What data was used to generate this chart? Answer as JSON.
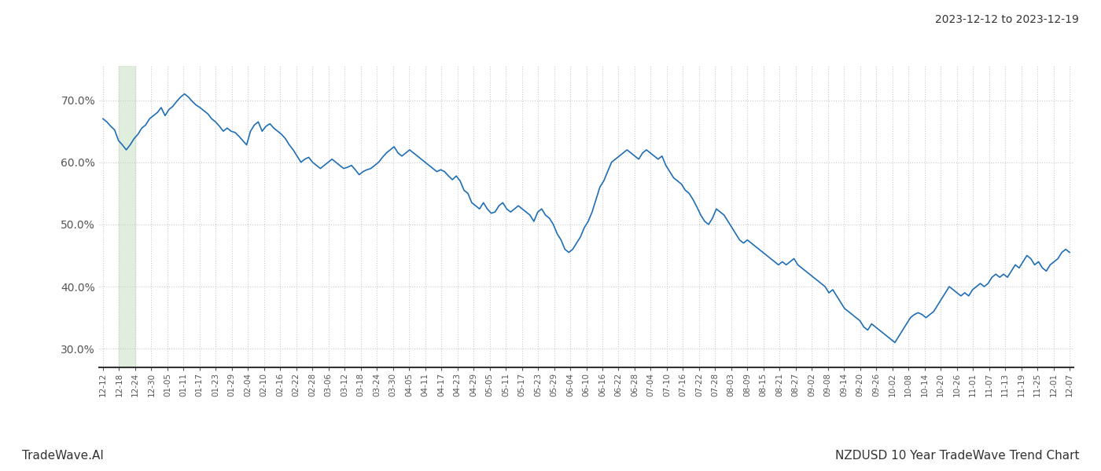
{
  "title_top_right": "2023-12-12 to 2023-12-19",
  "footer_left": "TradeWave.AI",
  "footer_right": "NZDUSD 10 Year TradeWave Trend Chart",
  "line_color": "#1f6eb5",
  "line_width": 1.2,
  "shaded_region_color": "#d4e8d0",
  "shaded_region_alpha": 0.7,
  "background_color": "#ffffff",
  "grid_color": "#cccccc",
  "ylim_min": 27.0,
  "ylim_max": 75.5,
  "yticks": [
    30.0,
    40.0,
    50.0,
    60.0,
    70.0
  ],
  "ytick_labels": [
    "30.0%",
    "40.0%",
    "50.0%",
    "60.0%",
    "70.0%"
  ],
  "x_labels": [
    "12-12",
    "12-18",
    "12-24",
    "12-30",
    "01-05",
    "01-11",
    "01-17",
    "01-23",
    "01-29",
    "02-04",
    "02-10",
    "02-16",
    "02-22",
    "02-28",
    "03-06",
    "03-12",
    "03-18",
    "03-24",
    "03-30",
    "04-05",
    "04-11",
    "04-17",
    "04-23",
    "04-29",
    "05-05",
    "05-11",
    "05-17",
    "05-23",
    "05-29",
    "06-04",
    "06-10",
    "06-16",
    "06-22",
    "06-28",
    "07-04",
    "07-10",
    "07-16",
    "07-22",
    "07-28",
    "08-03",
    "08-09",
    "08-15",
    "08-21",
    "08-27",
    "09-02",
    "09-08",
    "09-14",
    "09-20",
    "09-26",
    "10-02",
    "10-08",
    "10-14",
    "10-20",
    "10-26",
    "11-01",
    "11-07",
    "11-13",
    "11-19",
    "11-25",
    "12-01",
    "12-07"
  ],
  "shaded_x_start_label": "12-18",
  "shaded_x_end_label": "12-24",
  "values": [
    67.0,
    66.5,
    65.8,
    65.2,
    63.5,
    62.8,
    62.0,
    62.8,
    63.8,
    64.5,
    65.5,
    66.0,
    67.0,
    67.5,
    68.0,
    68.8,
    67.5,
    68.5,
    69.0,
    69.8,
    70.5,
    71.0,
    70.5,
    69.8,
    69.2,
    68.8,
    68.3,
    67.8,
    67.0,
    66.5,
    65.8,
    65.0,
    65.5,
    65.0,
    64.8,
    64.2,
    63.5,
    62.8,
    65.0,
    66.0,
    66.5,
    65.0,
    65.8,
    66.2,
    65.5,
    65.0,
    64.5,
    63.8,
    62.8,
    62.0,
    61.0,
    60.0,
    60.5,
    60.8,
    60.0,
    59.5,
    59.0,
    59.5,
    60.0,
    60.5,
    60.0,
    59.5,
    59.0,
    59.2,
    59.5,
    58.8,
    58.0,
    58.5,
    58.8,
    59.0,
    59.5,
    60.0,
    60.8,
    61.5,
    62.0,
    62.5,
    61.5,
    61.0,
    61.5,
    62.0,
    61.5,
    61.0,
    60.5,
    60.0,
    59.5,
    59.0,
    58.5,
    58.8,
    58.5,
    57.8,
    57.2,
    57.8,
    57.0,
    55.5,
    55.0,
    53.5,
    53.0,
    52.5,
    53.5,
    52.5,
    51.8,
    52.0,
    53.0,
    53.5,
    52.5,
    52.0,
    52.5,
    53.0,
    52.5,
    52.0,
    51.5,
    50.5,
    52.0,
    52.5,
    51.5,
    51.0,
    50.0,
    48.5,
    47.5,
    46.0,
    45.5,
    46.0,
    47.0,
    48.0,
    49.5,
    50.5,
    52.0,
    54.0,
    56.0,
    57.0,
    58.5,
    60.0,
    60.5,
    61.0,
    61.5,
    62.0,
    61.5,
    61.0,
    60.5,
    61.5,
    62.0,
    61.5,
    61.0,
    60.5,
    61.0,
    59.5,
    58.5,
    57.5,
    57.0,
    56.5,
    55.5,
    55.0,
    54.0,
    52.8,
    51.5,
    50.5,
    50.0,
    51.0,
    52.5,
    52.0,
    51.5,
    50.5,
    49.5,
    48.5,
    47.5,
    47.0,
    47.5,
    47.0,
    46.5,
    46.0,
    45.5,
    45.0,
    44.5,
    44.0,
    43.5,
    44.0,
    43.5,
    44.0,
    44.5,
    43.5,
    43.0,
    42.5,
    42.0,
    41.5,
    41.0,
    40.5,
    40.0,
    39.0,
    39.5,
    38.5,
    37.5,
    36.5,
    36.0,
    35.5,
    35.0,
    34.5,
    33.5,
    33.0,
    34.0,
    33.5,
    33.0,
    32.5,
    32.0,
    31.5,
    31.0,
    32.0,
    33.0,
    34.0,
    35.0,
    35.5,
    35.8,
    35.5,
    35.0,
    35.5,
    36.0,
    37.0,
    38.0,
    39.0,
    40.0,
    39.5,
    39.0,
    38.5,
    39.0,
    38.5,
    39.5,
    40.0,
    40.5,
    40.0,
    40.5,
    41.5,
    42.0,
    41.5,
    42.0,
    41.5,
    42.5,
    43.5,
    43.0,
    44.0,
    45.0,
    44.5,
    43.5,
    44.0,
    43.0,
    42.5,
    43.5,
    44.0,
    44.5,
    45.5,
    46.0,
    45.5
  ]
}
